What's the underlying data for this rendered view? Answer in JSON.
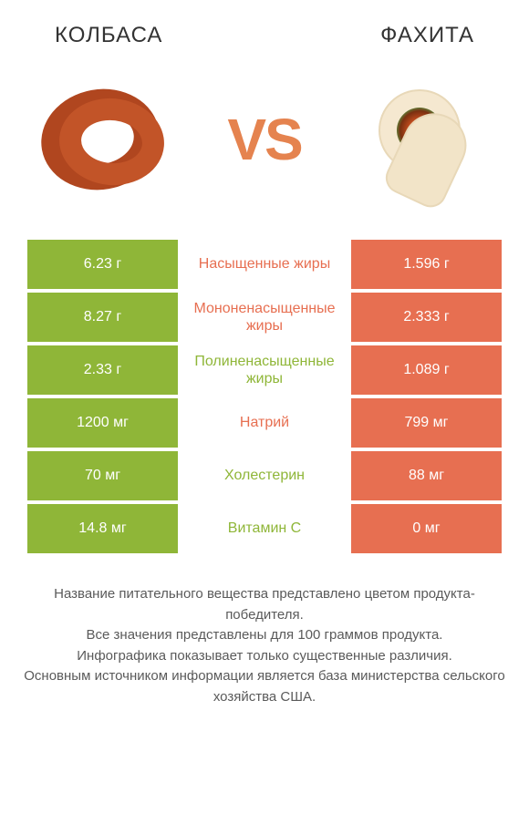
{
  "header": {
    "left_title": "КОЛБАСА",
    "right_title": "ФАХИТА",
    "vs_text": "VS"
  },
  "colors": {
    "left_product": "#8fb638",
    "right_product": "#e76f51",
    "left_text": "#8fb638",
    "right_text": "#e76f51",
    "vs_color": "#e5834f",
    "footer_text": "#5a5a5a"
  },
  "rows": [
    {
      "left": "6.23 г",
      "mid": "Насыщенные жиры",
      "right": "1.596 г",
      "mid_color": "right"
    },
    {
      "left": "8.27 г",
      "mid": "Мононенасыщенные жиры",
      "right": "2.333 г",
      "mid_color": "right"
    },
    {
      "left": "2.33 г",
      "mid": "Полиненасыщенные жиры",
      "right": "1.089 г",
      "mid_color": "left"
    },
    {
      "left": "1200 мг",
      "mid": "Натрий",
      "right": "799 мг",
      "mid_color": "right"
    },
    {
      "left": "70 мг",
      "mid": "Холестерин",
      "right": "88 мг",
      "mid_color": "left"
    },
    {
      "left": "14.8 мг",
      "mid": "Витамин C",
      "right": "0 мг",
      "mid_color": "left"
    }
  ],
  "footer": {
    "line1": "Название питательного вещества представлено цветом продукта-победителя.",
    "line2": "Все значения представлены для 100 граммов продукта.",
    "line3": "Инфографика показывает только существенные различия.",
    "line4": "Основным источником информации является база министерства сельского хозяйства США."
  }
}
